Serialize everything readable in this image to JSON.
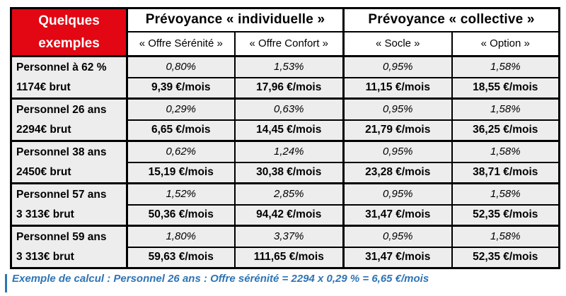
{
  "colors": {
    "corner_red": "#e30613",
    "cell_gray": "#ededed",
    "border_black": "#000000",
    "footer_blue": "#2e74b5"
  },
  "table": {
    "corner": {
      "line1": "Quelques",
      "line2": "exemples"
    },
    "group_headers": [
      {
        "label": "Prévoyance « individuelle »"
      },
      {
        "label": "Prévoyance « collective »"
      }
    ],
    "column_headers": [
      "« Offre Sérénité »",
      "« Offre Confort »",
      "« Socle »",
      "« Option »"
    ],
    "rows": [
      {
        "label1": "Personnel à 62 %",
        "label2": "1174€ brut",
        "pct": [
          "0,80%",
          "1,53%",
          "0,95%",
          "1,58%"
        ],
        "amount": [
          "9,39 €/mois",
          "17,96 €/mois",
          "11,15 €/mois",
          "18,55 €/mois"
        ]
      },
      {
        "label1": "Personnel 26 ans",
        "label2": "2294€ brut",
        "pct": [
          "0,29%",
          "0,63%",
          "0,95%",
          "1,58%"
        ],
        "amount": [
          "6,65 €/mois",
          "14,45 €/mois",
          "21,79 €/mois",
          "36,25 €/mois"
        ]
      },
      {
        "label1": "Personnel 38 ans",
        "label2": "2450€ brut",
        "pct": [
          "0,62%",
          "1,24%",
          "0,95%",
          "1,58%"
        ],
        "amount": [
          "15,19 €/mois",
          "30,38 €/mois",
          "23,28 €/mois",
          "38,71 €/mois"
        ]
      },
      {
        "label1": "Personnel 57 ans",
        "label2": "3 313€ brut",
        "pct": [
          "1,52%",
          "2,85%",
          "0,95%",
          "1,58%"
        ],
        "amount": [
          "50,36 €/mois",
          "94,42 €/mois",
          "31,47 €/mois",
          "52,35 €/mois"
        ]
      },
      {
        "label1": "Personnel 59 ans",
        "label2": "3 313€ brut",
        "pct": [
          "1,80%",
          "3,37%",
          "0,95%",
          "1,58%"
        ],
        "amount": [
          "59,63 €/mois",
          "111,65 €/mois",
          "31,47 €/mois",
          "52,35 €/mois"
        ]
      }
    ]
  },
  "footer": {
    "text": "Exemple de calcul : Personnel 26 ans : Offre sérénité = 2294 x 0,29 % = 6,65 €/mois"
  }
}
